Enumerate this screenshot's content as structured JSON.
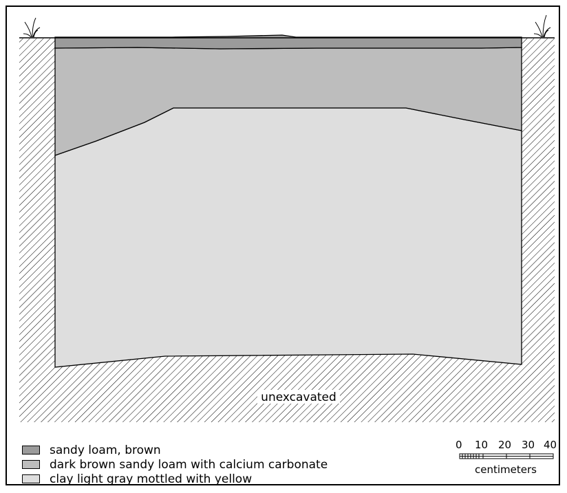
{
  "profile": {
    "base_label": "unexcavated"
  },
  "legend": [
    {
      "label": "sandy loam, brown",
      "color": "#9b9b9b"
    },
    {
      "label": "dark brown sandy loam with calcium carbonate",
      "color": "#bdbdbd"
    },
    {
      "label": "clay light gray mottled with yellow",
      "color": "#dedede"
    }
  ],
  "scale": {
    "ticks": [
      "0",
      "10",
      "20",
      "30",
      "40"
    ],
    "unit": "centimeters"
  }
}
